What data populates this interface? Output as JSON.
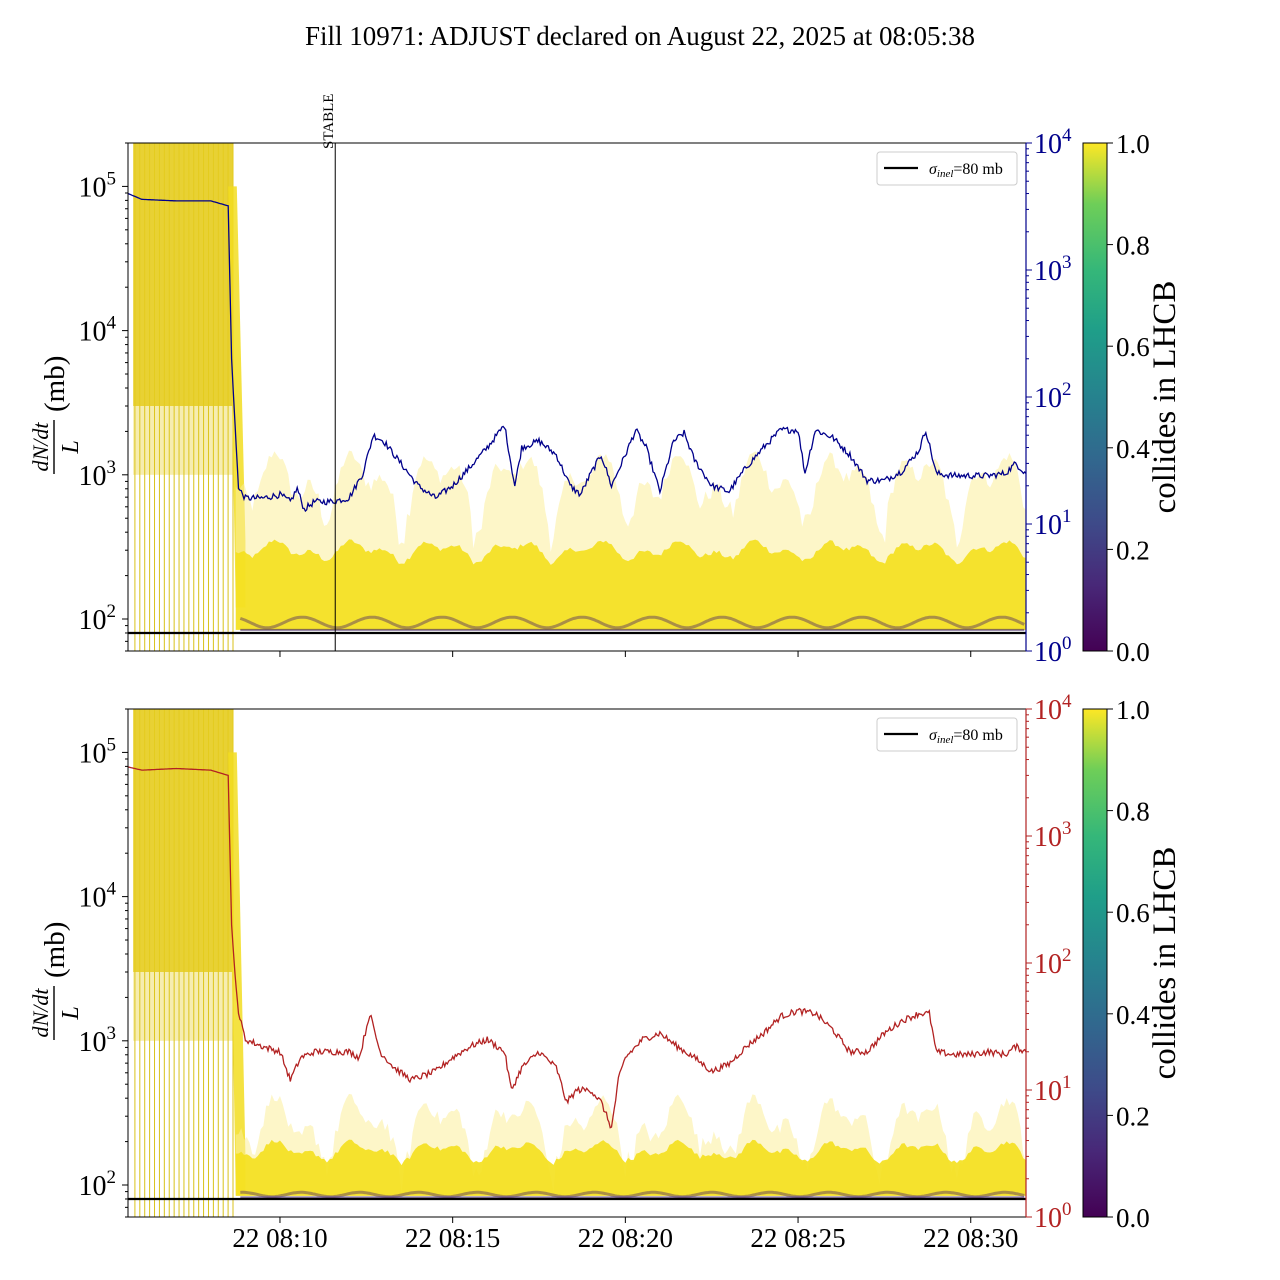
{
  "title": "Fill 10971: ADJUST declared on August 22, 2025 at 08:05:38",
  "chart_data": [
    {
      "type": "line",
      "panel": "top",
      "ylabel_left": "dN/dt / L (mb)",
      "ylabel_left_num": "dN/dt",
      "ylabel_left_den": "L",
      "ylabel_left_unit": "(mb)",
      "yscale_left": "log",
      "ylim_left": [
        60,
        200000
      ],
      "yticks_left": [
        {
          "value": 100,
          "base": "10",
          "exp": "2"
        },
        {
          "value": 1000,
          "base": "10",
          "exp": "3"
        },
        {
          "value": 10000,
          "base": "10",
          "exp": "4"
        },
        {
          "value": 100000,
          "base": "10",
          "exp": "5"
        }
      ],
      "yscale_right": "log",
      "ylim_right": [
        1,
        10000
      ],
      "right_axis_color": "#00008b",
      "yticks_right": [
        {
          "value": 1,
          "base": "10",
          "exp": "0"
        },
        {
          "value": 10,
          "base": "10",
          "exp": "1"
        },
        {
          "value": 100,
          "base": "10",
          "exp": "2"
        },
        {
          "value": 1000,
          "base": "10",
          "exp": "3"
        },
        {
          "value": 10000,
          "base": "10",
          "exp": "4"
        }
      ],
      "xlim_min": [
        5.6,
        31.6
      ],
      "vline": {
        "x_min": 11.6,
        "label": "STABLE"
      },
      "reference_line": {
        "y": 80,
        "label_sym": "σ",
        "label_sub": "inel",
        "label_rest": "=80 mb",
        "color": "#000000"
      },
      "colorbar": {
        "label": "collides in LHCB",
        "cmap": "viridis",
        "ticks": [
          "0.0",
          "0.2",
          "0.4",
          "0.6",
          "0.8",
          "1.0"
        ]
      },
      "series": [
        {
          "axis": "right",
          "color": "#00008b",
          "x_min": [
            5.6,
            6.0,
            7.0,
            8.0,
            8.5,
            8.6,
            8.7,
            8.8,
            9.0,
            9.5,
            10.0,
            10.3,
            10.5,
            10.7,
            11.0,
            11.5,
            12.0,
            12.4,
            12.7,
            13.0,
            13.5,
            14.0,
            14.5,
            15.0,
            15.5,
            16.0,
            16.5,
            16.8,
            17.0,
            17.5,
            18.0,
            18.4,
            18.7,
            19.0,
            19.3,
            19.6,
            20.0,
            20.3,
            20.6,
            21.0,
            21.4,
            21.7,
            22.0,
            22.5,
            23.0,
            23.5,
            24.0,
            24.5,
            25.0,
            25.2,
            25.5,
            26.0,
            26.5,
            27.0,
            27.5,
            28.0,
            28.5,
            28.7,
            29.0,
            29.5,
            30.0,
            30.5,
            31.0,
            31.3,
            31.6
          ],
          "y": [
            4000,
            3600,
            3500,
            3500,
            3200,
            200,
            60,
            19,
            16,
            16,
            17,
            15,
            19,
            13,
            15,
            15,
            16,
            25,
            50,
            45,
            30,
            20,
            16,
            20,
            28,
            40,
            60,
            20,
            40,
            45,
            35,
            20,
            17,
            25,
            35,
            20,
            35,
            55,
            40,
            18,
            45,
            52,
            32,
            20,
            18,
            28,
            40,
            55,
            55,
            25,
            55,
            48,
            35,
            22,
            22,
            26,
            38,
            55,
            25,
            24,
            24,
            24,
            25,
            30,
            25
          ]
        },
        {
          "axis": "left",
          "name": "σinel=80 mb",
          "color": "#000000",
          "x_min": [
            5.6,
            31.6
          ],
          "y": [
            80,
            80
          ]
        }
      ]
    },
    {
      "type": "line",
      "panel": "bottom",
      "ylabel_left": "dN/dt / L (mb)",
      "ylabel_left_num": "dN/dt",
      "ylabel_left_den": "L",
      "ylabel_left_unit": "(mb)",
      "yscale_left": "log",
      "ylim_left": [
        60,
        200000
      ],
      "yticks_left": [
        {
          "value": 100,
          "base": "10",
          "exp": "2"
        },
        {
          "value": 1000,
          "base": "10",
          "exp": "3"
        },
        {
          "value": 10000,
          "base": "10",
          "exp": "4"
        },
        {
          "value": 100000,
          "base": "10",
          "exp": "5"
        }
      ],
      "yscale_right": "log",
      "ylim_right": [
        1,
        10000
      ],
      "right_axis_color": "#b22222",
      "yticks_right": [
        {
          "value": 1,
          "base": "10",
          "exp": "0"
        },
        {
          "value": 10,
          "base": "10",
          "exp": "1"
        },
        {
          "value": 100,
          "base": "10",
          "exp": "2"
        },
        {
          "value": 1000,
          "base": "10",
          "exp": "3"
        },
        {
          "value": 10000,
          "base": "10",
          "exp": "4"
        }
      ],
      "xlim_min": [
        5.6,
        31.6
      ],
      "xticks": [
        {
          "value": 10,
          "label": "22 08:10"
        },
        {
          "value": 15,
          "label": "22 08:15"
        },
        {
          "value": 20,
          "label": "22 08:20"
        },
        {
          "value": 25,
          "label": "22 08:25"
        },
        {
          "value": 30,
          "label": "22 08:30"
        }
      ],
      "reference_line": {
        "y": 80,
        "label_sym": "σ",
        "label_sub": "inel",
        "label_rest": "=80 mb",
        "color": "#000000"
      },
      "colorbar": {
        "label": "collides in LHCB",
        "cmap": "viridis",
        "ticks": [
          "0.0",
          "0.2",
          "0.4",
          "0.6",
          "0.8",
          "1.0"
        ]
      },
      "series": [
        {
          "axis": "right",
          "color": "#b22222",
          "x_min": [
            5.6,
            6.0,
            7.0,
            8.0,
            8.5,
            8.6,
            8.7,
            8.8,
            9.0,
            9.5,
            10.0,
            10.3,
            10.6,
            11.0,
            11.5,
            12.0,
            12.3,
            12.6,
            12.9,
            13.3,
            13.8,
            14.5,
            15.0,
            15.5,
            16.0,
            16.5,
            16.7,
            17.0,
            17.5,
            18.0,
            18.3,
            18.6,
            19.0,
            19.3,
            19.6,
            19.8,
            20.0,
            20.5,
            21.0,
            21.5,
            22.0,
            22.5,
            23.0,
            23.5,
            24.0,
            24.5,
            25.0,
            25.5,
            26.0,
            26.5,
            27.0,
            27.5,
            28.0,
            28.5,
            28.8,
            29.0,
            29.5,
            30.0,
            30.5,
            31.0,
            31.3,
            31.6
          ],
          "y": [
            3500,
            3300,
            3400,
            3300,
            3000,
            200,
            80,
            40,
            25,
            22,
            20,
            12,
            18,
            20,
            20,
            20,
            18,
            40,
            20,
            15,
            12,
            14,
            18,
            22,
            25,
            20,
            10,
            15,
            20,
            15,
            8,
            10,
            10,
            8,
            5,
            12,
            18,
            25,
            28,
            22,
            18,
            14,
            16,
            22,
            28,
            38,
            42,
            40,
            30,
            20,
            20,
            28,
            35,
            40,
            40,
            20,
            19,
            19,
            20,
            19,
            22,
            20
          ]
        },
        {
          "axis": "left",
          "name": "σinel=80 mb",
          "color": "#000000",
          "x_min": [
            5.6,
            31.6
          ],
          "y": [
            80,
            80
          ]
        }
      ]
    }
  ]
}
